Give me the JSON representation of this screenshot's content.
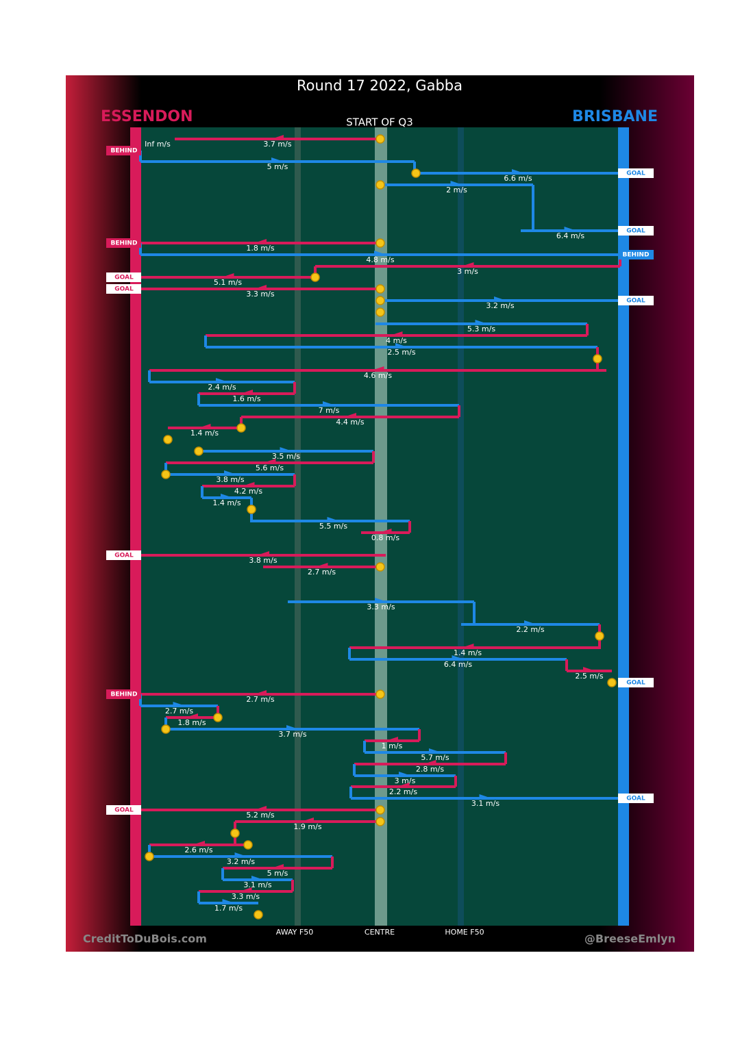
{
  "header": {
    "title": "Round 17 2022, Gabba",
    "left_team": "ESSENDON",
    "right_team": "BRISBANE",
    "subtitle": "START OF Q3"
  },
  "axis": {
    "away": "AWAY F50",
    "centre": "CENTRE",
    "home": "HOME F50"
  },
  "footer": {
    "left": "CreditToDuBois.com",
    "right": "@BreeseEmlyn"
  },
  "colors": {
    "red": "#d81b5a",
    "blue": "#1e88e5"
  },
  "outcomes": [
    {
      "text": "BEHIND",
      "side": "left"
    },
    {
      "text": "GOAL",
      "side": "right"
    },
    {
      "text": "GOAL",
      "side": "right"
    },
    {
      "text": "BEHIND",
      "side": "left"
    },
    {
      "text": "BEHIND",
      "side": "right"
    },
    {
      "text": "GOAL",
      "side": "left"
    },
    {
      "text": "GOAL",
      "side": "left"
    },
    {
      "text": "GOAL",
      "side": "right"
    },
    {
      "text": "GOAL",
      "side": "left"
    },
    {
      "text": "GOAL",
      "side": "right"
    },
    {
      "text": "BEHIND",
      "side": "left"
    },
    {
      "text": "GOAL",
      "side": "right"
    },
    {
      "text": "GOAL",
      "side": "left"
    }
  ],
  "segments": [
    {
      "color": "red",
      "label": "3.7 m/s"
    },
    {
      "color": "blue",
      "label": "Inf m/s"
    },
    {
      "color": "blue",
      "label": "5 m/s"
    },
    {
      "color": "blue",
      "label": "6.6 m/s"
    },
    {
      "color": "blue",
      "label": "2 m/s"
    },
    {
      "color": "blue",
      "label": "6.4 m/s"
    },
    {
      "color": "red",
      "label": "1.8 m/s"
    },
    {
      "color": "blue",
      "label": "4.8 m/s"
    },
    {
      "color": "red",
      "label": "3 m/s"
    },
    {
      "color": "red",
      "label": "5.1 m/s"
    },
    {
      "color": "red",
      "label": "3.3 m/s"
    },
    {
      "color": "blue",
      "label": "3.2 m/s"
    },
    {
      "color": "blue",
      "label": "5.3 m/s"
    },
    {
      "color": "red",
      "label": "4 m/s"
    },
    {
      "color": "blue",
      "label": "2.5 m/s"
    },
    {
      "color": "red",
      "label": "4.6 m/s"
    },
    {
      "color": "blue",
      "label": "2.4 m/s"
    },
    {
      "color": "red",
      "label": "1.6 m/s"
    },
    {
      "color": "blue",
      "label": "7 m/s"
    },
    {
      "color": "red",
      "label": "4.4 m/s"
    },
    {
      "color": "red",
      "label": "1.4 m/s"
    },
    {
      "color": "blue",
      "label": "3.5 m/s"
    },
    {
      "color": "red",
      "label": "5.6 m/s"
    },
    {
      "color": "blue",
      "label": "3.8 m/s"
    },
    {
      "color": "red",
      "label": "4.2 m/s"
    },
    {
      "color": "blue",
      "label": "1.4 m/s"
    },
    {
      "color": "blue",
      "label": "5.5 m/s"
    },
    {
      "color": "red",
      "label": "0.8 m/s"
    },
    {
      "color": "red",
      "label": "3.8 m/s"
    },
    {
      "color": "red",
      "label": "2.7 m/s"
    },
    {
      "color": "blue",
      "label": "3.3 m/s"
    },
    {
      "color": "blue",
      "label": "2.2 m/s"
    },
    {
      "color": "red",
      "label": "1.4 m/s"
    },
    {
      "color": "blue",
      "label": "6.4 m/s"
    },
    {
      "color": "red",
      "label": "2.5 m/s"
    },
    {
      "color": "red",
      "label": "2.7 m/s"
    },
    {
      "color": "blue",
      "label": "2.7 m/s"
    },
    {
      "color": "red",
      "label": "1.8 m/s"
    },
    {
      "color": "blue",
      "label": "3.7 m/s"
    },
    {
      "color": "red",
      "label": "1 m/s"
    },
    {
      "color": "blue",
      "label": "5.7 m/s"
    },
    {
      "color": "red",
      "label": "2.8 m/s"
    },
    {
      "color": "blue",
      "label": "3 m/s"
    },
    {
      "color": "red",
      "label": "2.2 m/s"
    },
    {
      "color": "blue",
      "label": "3.1 m/s"
    },
    {
      "color": "red",
      "label": "5.2 m/s"
    },
    {
      "color": "red",
      "label": "1.9 m/s"
    },
    {
      "color": "red",
      "label": "2.6 m/s"
    },
    {
      "color": "blue",
      "label": "3.2 m/s"
    },
    {
      "color": "red",
      "label": "5 m/s"
    },
    {
      "color": "blue",
      "label": "3.1 m/s"
    },
    {
      "color": "red",
      "label": "3.3 m/s"
    },
    {
      "color": "blue",
      "label": "1.7 m/s"
    }
  ]
}
